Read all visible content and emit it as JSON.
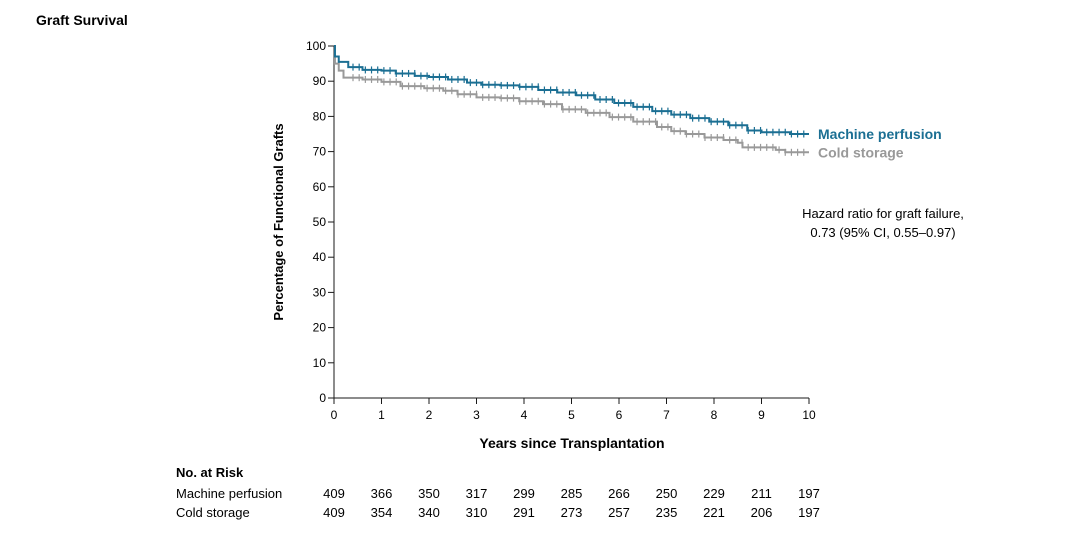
{
  "chart_data": {
    "type": "line",
    "title": "Graft Survival",
    "xlabel": "Years since Transplantation",
    "ylabel": "Percentage of Functional Grafts",
    "xlim": [
      0,
      10
    ],
    "ylim": [
      0,
      100
    ],
    "x_ticks": [
      0,
      1,
      2,
      3,
      4,
      5,
      6,
      7,
      8,
      9,
      10
    ],
    "y_ticks": [
      0,
      10,
      20,
      30,
      40,
      50,
      60,
      70,
      80,
      90,
      100
    ],
    "grid": false,
    "series": [
      {
        "name": "Machine perfusion",
        "color": "#1b6f93",
        "points": [
          [
            0,
            100
          ],
          [
            0.02,
            97
          ],
          [
            0.1,
            95.5
          ],
          [
            0.3,
            94
          ],
          [
            0.6,
            93.2
          ],
          [
            1.0,
            93
          ],
          [
            1.3,
            92.2
          ],
          [
            1.7,
            91.5
          ],
          [
            2.0,
            91.2
          ],
          [
            2.4,
            90.5
          ],
          [
            2.8,
            89.6
          ],
          [
            3.1,
            89
          ],
          [
            3.5,
            88.8
          ],
          [
            3.9,
            88.4
          ],
          [
            4.3,
            87.5
          ],
          [
            4.7,
            86.8
          ],
          [
            5.1,
            86
          ],
          [
            5.5,
            84.8
          ],
          [
            5.9,
            83.8
          ],
          [
            6.3,
            82.7
          ],
          [
            6.7,
            81.5
          ],
          [
            7.1,
            80.5
          ],
          [
            7.5,
            79.5
          ],
          [
            7.9,
            78.5
          ],
          [
            8.3,
            77.5
          ],
          [
            8.7,
            76
          ],
          [
            9.0,
            75.5
          ],
          [
            9.6,
            75
          ],
          [
            10,
            75
          ]
        ],
        "label": "Machine perfusion"
      },
      {
        "name": "Cold storage",
        "color": "#999999",
        "points": [
          [
            0,
            100
          ],
          [
            0.02,
            95
          ],
          [
            0.1,
            93
          ],
          [
            0.2,
            91
          ],
          [
            0.6,
            90.5
          ],
          [
            1.0,
            89.8
          ],
          [
            1.4,
            88.6
          ],
          [
            1.9,
            88
          ],
          [
            2.3,
            87.3
          ],
          [
            2.6,
            86.3
          ],
          [
            3.0,
            85.4
          ],
          [
            3.5,
            85.2
          ],
          [
            3.9,
            84.3
          ],
          [
            4.4,
            83.5
          ],
          [
            4.8,
            82
          ],
          [
            5.3,
            81
          ],
          [
            5.8,
            79.8
          ],
          [
            6.3,
            78.5
          ],
          [
            6.8,
            77
          ],
          [
            7.1,
            75.8
          ],
          [
            7.4,
            75
          ],
          [
            7.8,
            74
          ],
          [
            8.2,
            73.3
          ],
          [
            8.5,
            72.5
          ],
          [
            8.6,
            71.2
          ],
          [
            9.3,
            70.5
          ],
          [
            9.5,
            69.8
          ],
          [
            10,
            69.8
          ]
        ],
        "label": "Cold storage"
      }
    ],
    "annotations": [
      "Hazard ratio for graft failure,",
      "0.73 (95% CI, 0.55–0.97)"
    ],
    "risk_table": {
      "title": "No. at Risk",
      "rows": [
        {
          "label": "Machine perfusion",
          "values": [
            409,
            366,
            350,
            317,
            299,
            285,
            266,
            250,
            229,
            211,
            197
          ]
        },
        {
          "label": "Cold storage",
          "values": [
            409,
            354,
            340,
            310,
            291,
            273,
            257,
            235,
            221,
            206,
            197
          ]
        }
      ]
    }
  }
}
